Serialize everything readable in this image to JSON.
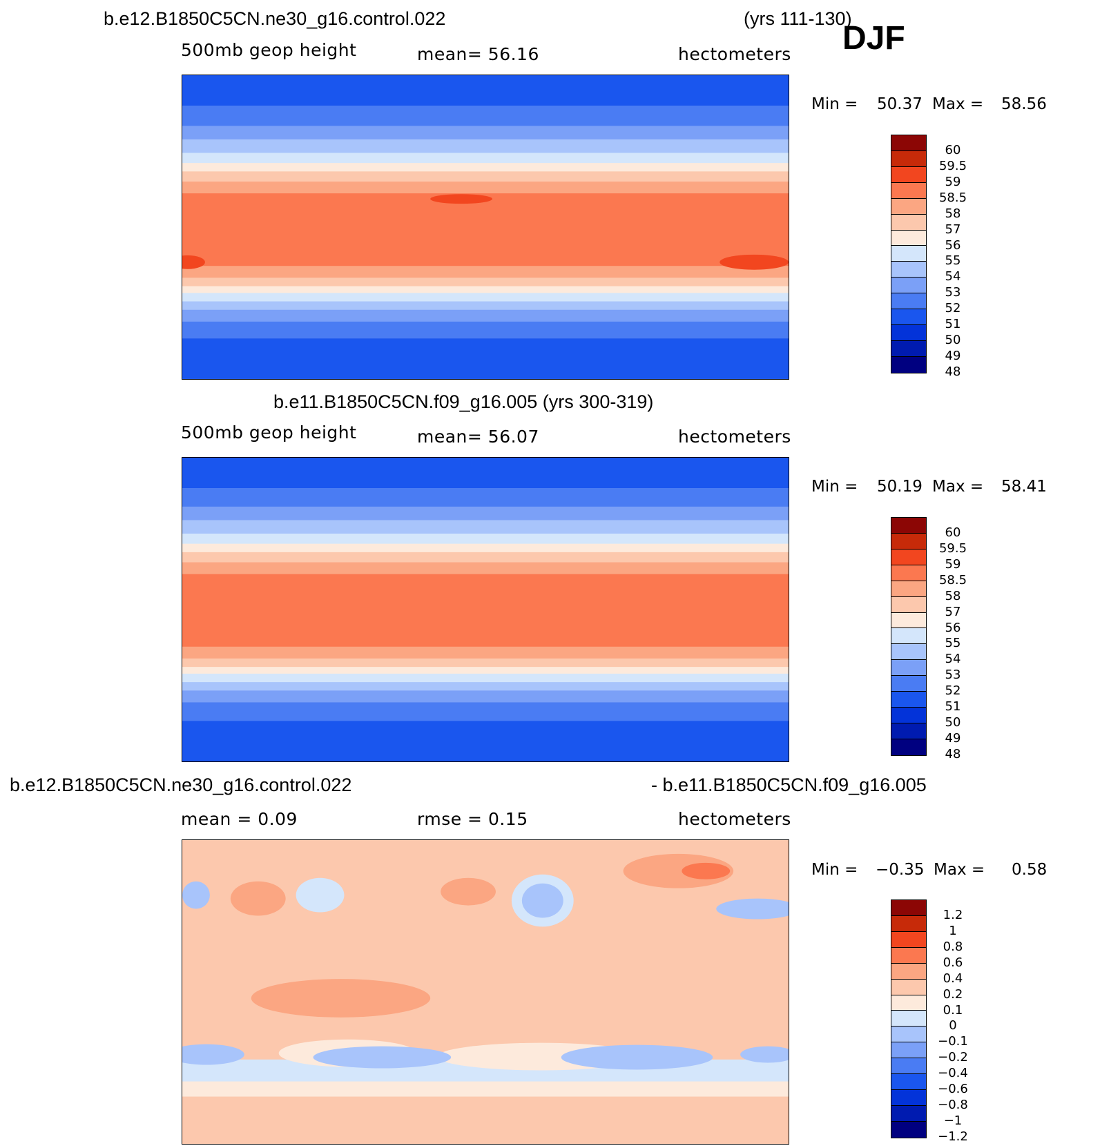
{
  "season": "DJF",
  "palette": [
    "#000080",
    "#001bb0",
    "#0333d9",
    "#1a56ee",
    "#4a7cf3",
    "#7ba0f7",
    "#a8c4fb",
    "#d4e6fb",
    "#fdeadc",
    "#fcc8ad",
    "#fba682",
    "#fb7850",
    "#f2461f",
    "#c72a09",
    "#8c0605"
  ],
  "panels": [
    {
      "id": "panel-1",
      "title_left": "b.e12.B1850C5CN.ne30_g16.control.022",
      "title_right": "(yrs 111-130)",
      "subtitle_left": "500mb  geop  height",
      "subtitle_mid": "mean=   56.16",
      "subtitle_right": "hectometers",
      "min_label": "Min =",
      "min_value": "50.37",
      "max_label": "Max =",
      "max_value": "58.56",
      "legend": [
        "60",
        "59.5",
        "59",
        "58.5",
        "58",
        "57",
        "56",
        "55",
        "54",
        "53",
        "52",
        "51",
        "50",
        "49",
        "48"
      ],
      "bands_lat": [
        {
          "lat": 90,
          "lvl": 3
        },
        {
          "lat": 72,
          "lvl": 4
        },
        {
          "lat": 60,
          "lvl": 5
        },
        {
          "lat": 52,
          "lvl": 6
        },
        {
          "lat": 44,
          "lvl": 7
        },
        {
          "lat": 38,
          "lvl": 8
        },
        {
          "lat": 33,
          "lvl": 9
        },
        {
          "lat": 27,
          "lvl": 10
        },
        {
          "lat": 20,
          "lvl": 11
        },
        {
          "lat": -23,
          "lvl": 10
        },
        {
          "lat": -30,
          "lvl": 9
        },
        {
          "lat": -35,
          "lvl": 8
        },
        {
          "lat": -39,
          "lvl": 7
        },
        {
          "lat": -44,
          "lvl": 6
        },
        {
          "lat": -49,
          "lvl": 5
        },
        {
          "lat": -56,
          "lvl": 4
        },
        {
          "lat": -66,
          "lvl": 3
        }
      ]
    },
    {
      "id": "panel-2",
      "title_left": "b.e11.B1850C5CN.f09_g16.005 (yrs 300-319)",
      "title_right": "",
      "subtitle_left": "500mb  geop  height",
      "subtitle_mid": "mean=   56.07",
      "subtitle_right": "hectometers",
      "min_label": "Min =",
      "min_value": "50.19",
      "max_label": "Max =",
      "max_value": "58.41",
      "legend": [
        "60",
        "59.5",
        "59",
        "58.5",
        "58",
        "57",
        "56",
        "55",
        "54",
        "53",
        "52",
        "51",
        "50",
        "49",
        "48"
      ],
      "bands_lat": [
        {
          "lat": 90,
          "lvl": 3
        },
        {
          "lat": 72,
          "lvl": 4
        },
        {
          "lat": 61,
          "lvl": 5
        },
        {
          "lat": 53,
          "lvl": 6
        },
        {
          "lat": 45,
          "lvl": 7
        },
        {
          "lat": 39,
          "lvl": 8
        },
        {
          "lat": 34,
          "lvl": 9
        },
        {
          "lat": 28,
          "lvl": 10
        },
        {
          "lat": 21,
          "lvl": 11
        },
        {
          "lat": -22,
          "lvl": 10
        },
        {
          "lat": -29,
          "lvl": 9
        },
        {
          "lat": -34,
          "lvl": 8
        },
        {
          "lat": -38,
          "lvl": 7
        },
        {
          "lat": -43,
          "lvl": 6
        },
        {
          "lat": -48,
          "lvl": 5
        },
        {
          "lat": -55,
          "lvl": 4
        },
        {
          "lat": -66,
          "lvl": 3
        }
      ]
    },
    {
      "id": "panel-3",
      "title_left": "b.e12.B1850C5CN.ne30_g16.control.022",
      "title_right": "- b.e11.B1850C5CN.f09_g16.005",
      "subtitle_left": "mean =     0.09",
      "subtitle_mid": "rmse =     0.15",
      "subtitle_right": "hectometers",
      "min_label": "Min =",
      "min_value": "−0.35",
      "max_label": "Max =",
      "max_value": "0.58",
      "legend": [
        "1.2",
        "1",
        "0.8",
        "0.6",
        "0.4",
        "0.2",
        "0.1",
        "0",
        "−0.1",
        "−0.2",
        "−0.4",
        "−0.6",
        "−0.8",
        "−1",
        "−1.2"
      ],
      "bands_lat": [
        {
          "lat": 90,
          "lvl": 9
        },
        {
          "lat": -40,
          "lvl": 7
        },
        {
          "lat": -53,
          "lvl": 8
        },
        {
          "lat": -62,
          "lvl": 9
        }
      ]
    }
  ]
}
